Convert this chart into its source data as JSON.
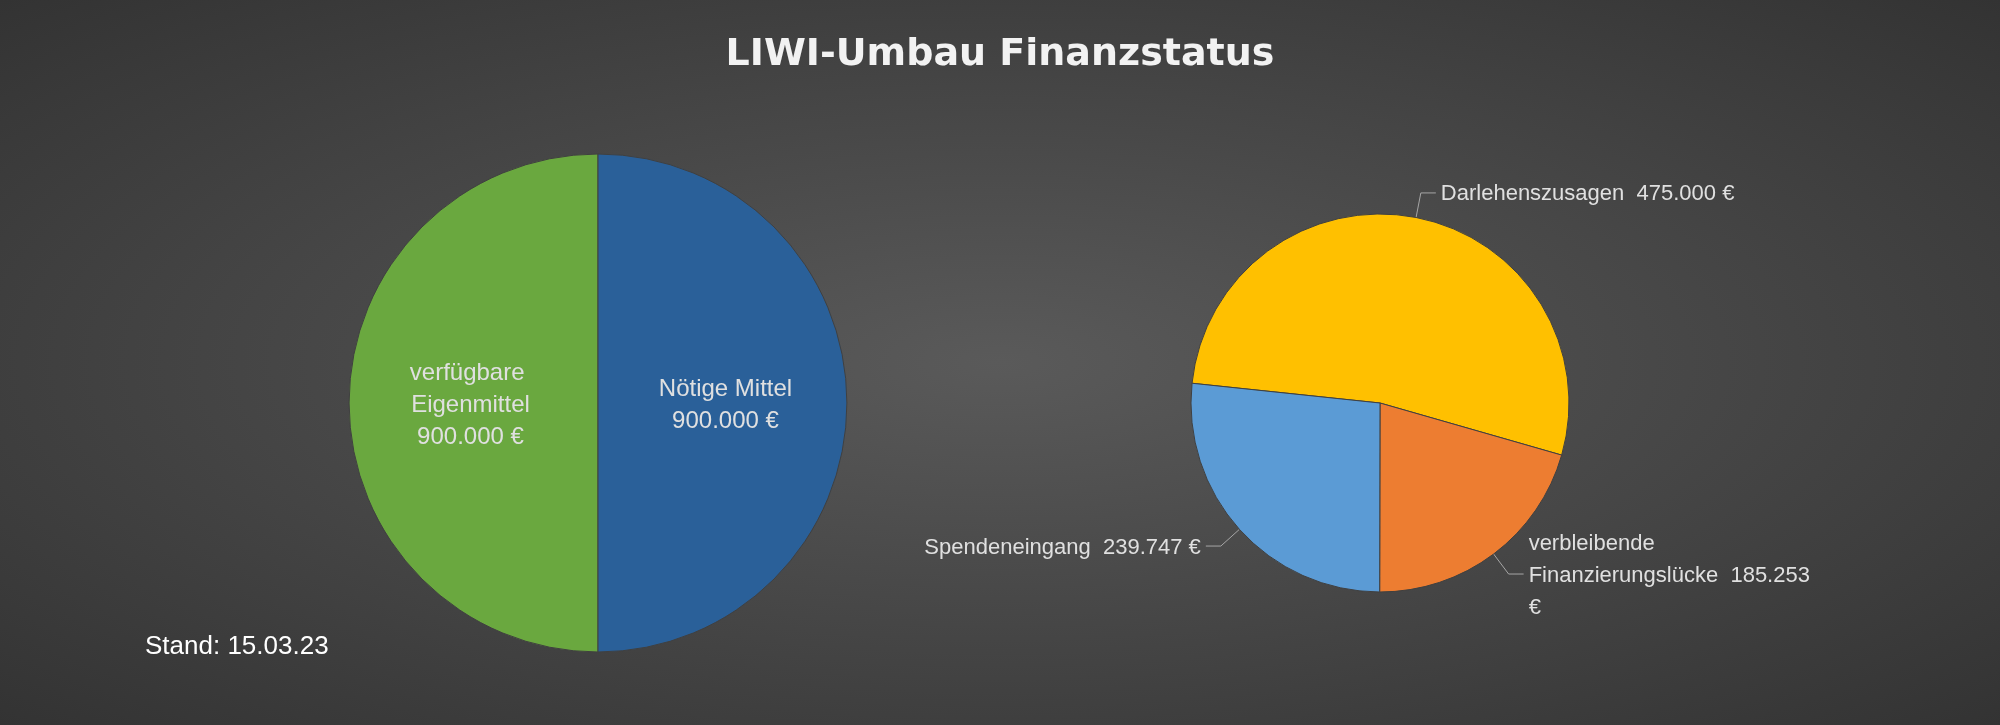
{
  "chart_data": [
    {
      "type": "pie",
      "title": "LIWI-Umbau Finanzstatus",
      "categories": [
        "verfügbare Eigenmittel",
        "Nötige Mittel"
      ],
      "values": [
        900000,
        900000
      ],
      "colors": [
        "#6aa83f",
        "#2a6099"
      ],
      "value_labels": [
        "900.000 €",
        "900.000 €"
      ],
      "annotations": [
        "Stand:  15.03.23"
      ]
    },
    {
      "type": "pie",
      "categories": [
        "Darlehenszusagen",
        "verbleibende Finanzierungslücke",
        "Spendeneingang"
      ],
      "values": [
        475000,
        185253,
        239747
      ],
      "colors": [
        "#ffc000",
        "#ed7d31",
        "#5b9bd5"
      ],
      "value_labels": [
        "475.000 €",
        "185.253 €",
        "239.747 €"
      ]
    }
  ]
}
